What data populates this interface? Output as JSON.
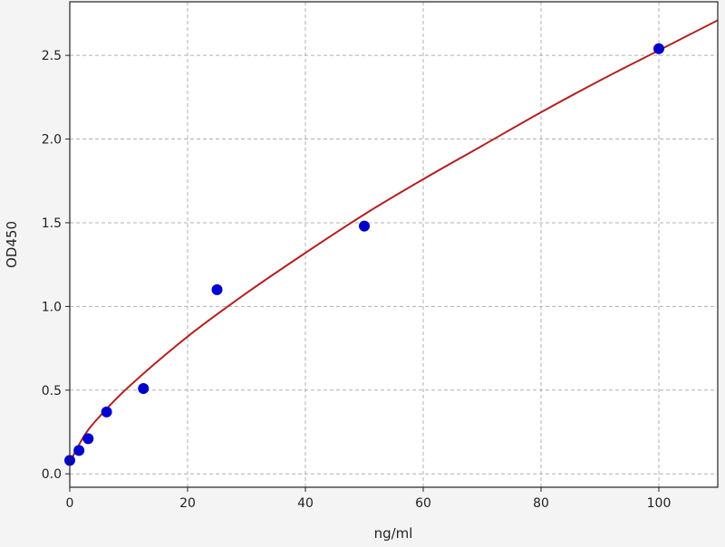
{
  "chart_data": {
    "type": "scatter",
    "title": "",
    "xlabel": "ng/ml",
    "ylabel": "OD450",
    "xlim": [
      0,
      110
    ],
    "ylim": [
      -0.08,
      2.82
    ],
    "xticks": [
      0,
      20,
      40,
      60,
      80,
      100
    ],
    "yticks": [
      0.0,
      0.5,
      1.0,
      1.5,
      2.0,
      2.5
    ],
    "xtick_labels": [
      "0",
      "20",
      "40",
      "60",
      "80",
      "100"
    ],
    "ytick_labels": [
      "0.0",
      "0.5",
      "1.0",
      "1.5",
      "2.0",
      "2.5"
    ],
    "grid": true,
    "series": [
      {
        "type": "scatter",
        "x": [
          0,
          1.5625,
          3.125,
          6.25,
          12.5,
          25,
          50,
          100
        ],
        "y": [
          0.08,
          0.14,
          0.21,
          0.37,
          0.51,
          1.1,
          1.48,
          2.54
        ],
        "color": "#0000cc"
      },
      {
        "type": "line",
        "x": [
          0,
          2.5,
          5,
          10,
          20,
          30,
          40,
          50,
          60,
          70,
          80,
          90,
          100,
          110
        ],
        "y": [
          0.07,
          0.23,
          0.34,
          0.52,
          0.82,
          1.08,
          1.32,
          1.55,
          1.76,
          1.96,
          2.16,
          2.35,
          2.53,
          2.71
        ],
        "color": "#b22222"
      }
    ]
  }
}
